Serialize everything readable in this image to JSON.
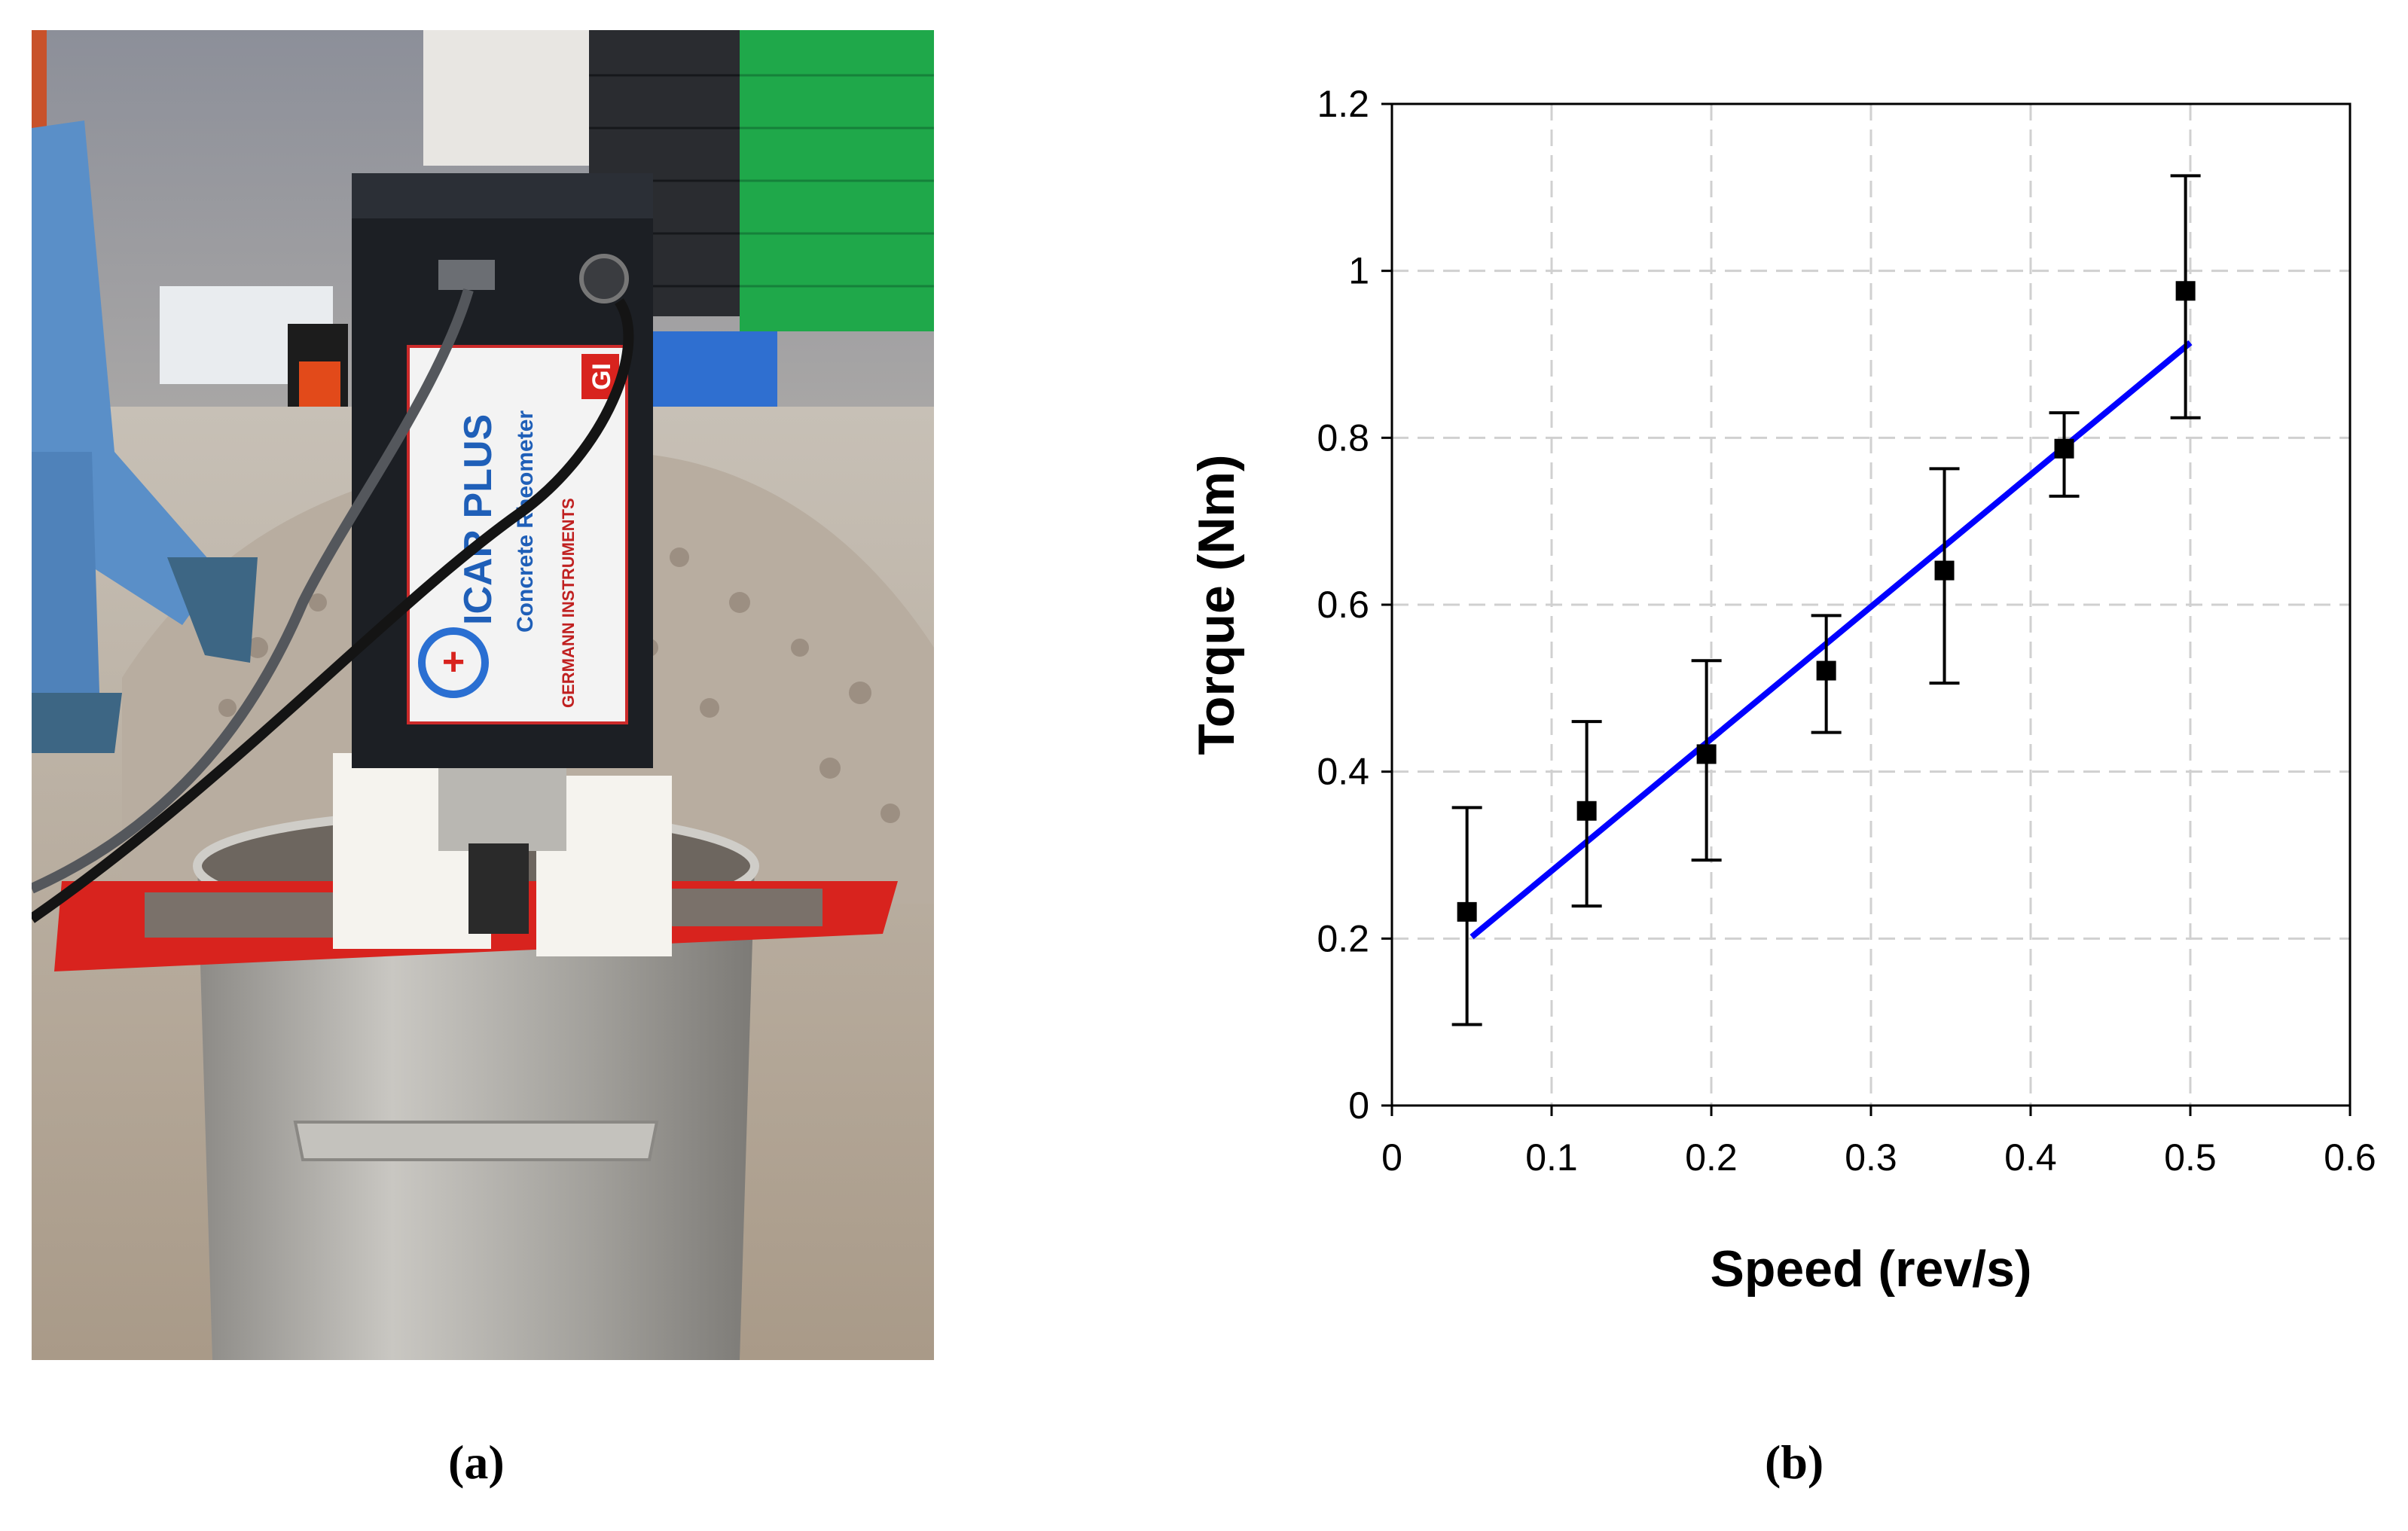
{
  "figure": {
    "panel_a_label": "(a)",
    "panel_b_label": "(b)"
  },
  "photo": {
    "device_brand": "ICAR PLUS",
    "device_subtitle": "Concrete Rheometer",
    "badge_text": "GI",
    "maker_text": "GERMANN INSTRUMENTS",
    "colors": {
      "frame_red": "#d8231e",
      "housing_black": "#1c1f24",
      "crate_green": "#1fa84a",
      "bucket_steel": "#a8a6a0",
      "jeans_blue": "#5a8fc8",
      "aggregate": "#b8ada0"
    }
  },
  "chart_data": {
    "type": "scatter",
    "xlabel": "Speed (rev/s)",
    "ylabel": "Torque (Nm)",
    "xlim": [
      0,
      0.6
    ],
    "ylim": [
      0,
      1.2
    ],
    "x_ticks": [
      "0",
      "0.1",
      "0.2",
      "0.3",
      "0.4",
      "0.5",
      "0.6"
    ],
    "y_ticks": [
      "0",
      "0.2",
      "0.4",
      "0.6",
      "0.8",
      "1",
      "1.2"
    ],
    "grid": true,
    "points": [
      {
        "x": 0.047,
        "y": 0.232,
        "err_low": 0.097,
        "err_high": 0.357
      },
      {
        "x": 0.122,
        "y": 0.353,
        "err_low": 0.239,
        "err_high": 0.46
      },
      {
        "x": 0.197,
        "y": 0.421,
        "err_low": 0.294,
        "err_high": 0.533
      },
      {
        "x": 0.272,
        "y": 0.521,
        "err_low": 0.447,
        "err_high": 0.587
      },
      {
        "x": 0.346,
        "y": 0.641,
        "err_low": 0.506,
        "err_high": 0.763
      },
      {
        "x": 0.421,
        "y": 0.787,
        "err_low": 0.73,
        "err_high": 0.83
      },
      {
        "x": 0.497,
        "y": 0.976,
        "err_low": 0.824,
        "err_high": 1.114
      }
    ],
    "fit_line": {
      "x": [
        0.05,
        0.5
      ],
      "y": [
        0.202,
        0.914
      ]
    },
    "colors": {
      "fit": "#0000ff",
      "markers": "#000000",
      "grid": "#d0d0d0"
    }
  }
}
